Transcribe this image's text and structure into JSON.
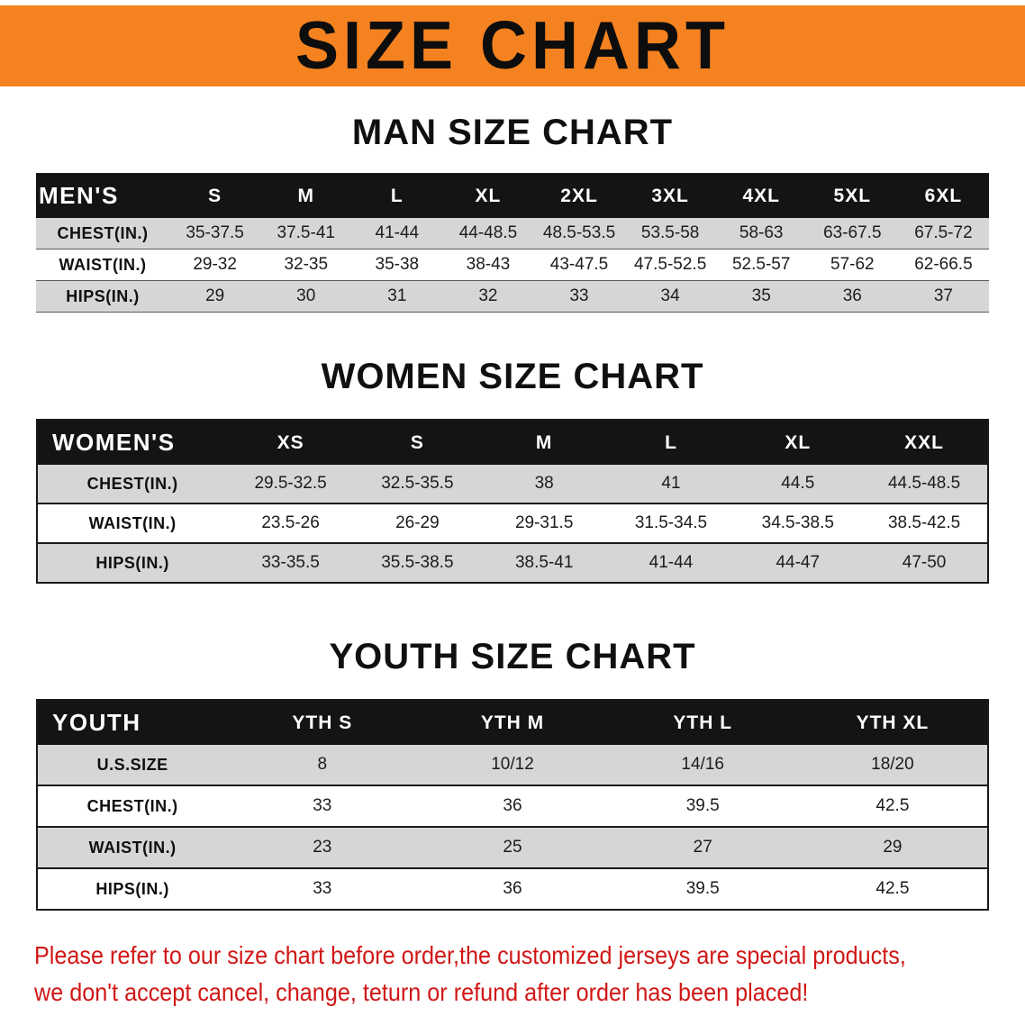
{
  "banner": {
    "title": "SIZE CHART"
  },
  "chart_data": [
    {
      "type": "table",
      "id": "men",
      "title": "MAN SIZE CHART",
      "columns": [
        "MEN'S",
        "S",
        "M",
        "L",
        "XL",
        "2XL",
        "3XL",
        "4XL",
        "5XL",
        "6XL"
      ],
      "rows": [
        [
          "CHEST(IN.)",
          "35-37.5",
          "37.5-41",
          "41-44",
          "44-48.5",
          "48.5-53.5",
          "53.5-58",
          "58-63",
          "63-67.5",
          "67.5-72"
        ],
        [
          "WAIST(IN.)",
          "29-32",
          "32-35",
          "35-38",
          "38-43",
          "43-47.5",
          "47.5-52.5",
          "52.5-57",
          "57-62",
          "62-66.5"
        ],
        [
          "HIPS(IN.)",
          "29",
          "30",
          "31",
          "32",
          "33",
          "34",
          "35",
          "36",
          "37"
        ]
      ]
    },
    {
      "type": "table",
      "id": "women",
      "title": "WOMEN SIZE CHART",
      "columns": [
        "WOMEN'S",
        "XS",
        "S",
        "M",
        "L",
        "XL",
        "XXL"
      ],
      "rows": [
        [
          "CHEST(IN.)",
          "29.5-32.5",
          "32.5-35.5",
          "38",
          "41",
          "44.5",
          "44.5-48.5"
        ],
        [
          "WAIST(IN.)",
          "23.5-26",
          "26-29",
          "29-31.5",
          "31.5-34.5",
          "34.5-38.5",
          "38.5-42.5"
        ],
        [
          "HIPS(IN.)",
          "33-35.5",
          "35.5-38.5",
          "38.5-41",
          "41-44",
          "44-47",
          "47-50"
        ]
      ]
    },
    {
      "type": "table",
      "id": "youth",
      "title": "YOUTH SIZE CHART",
      "columns": [
        "YOUTH",
        "YTH S",
        "YTH M",
        "YTH L",
        "YTH XL"
      ],
      "rows": [
        [
          "U.S.SIZE",
          "8",
          "10/12",
          "14/16",
          "18/20"
        ],
        [
          "CHEST(IN.)",
          "33",
          "36",
          "39.5",
          "42.5"
        ],
        [
          "WAIST(IN.)",
          "23",
          "25",
          "27",
          "29"
        ],
        [
          "HIPS(IN.)",
          "33",
          "36",
          "39.5",
          "42.5"
        ]
      ]
    }
  ],
  "footer": {
    "line1": "Please refer to our size chart before order,the customized jerseys are special products,",
    "line2": "we don't accept cancel, change, teturn or refund after order has been placed!"
  },
  "colors": {
    "banner_orange": "#F58220",
    "header_black": "#141414",
    "row_gray": "#D6D6D6",
    "notice_red": "#D01716"
  }
}
